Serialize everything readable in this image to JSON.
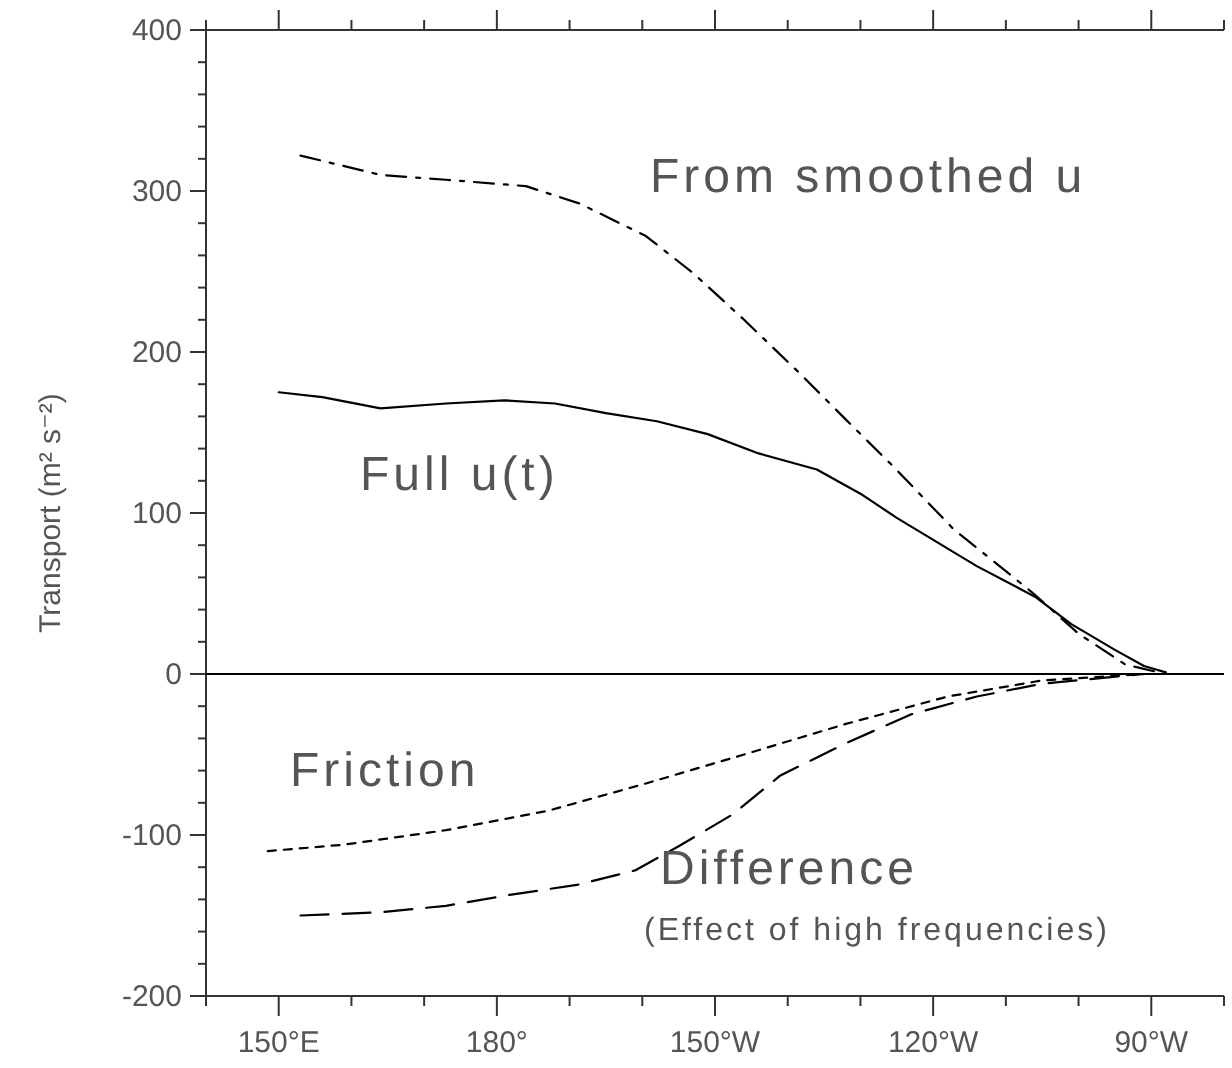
{
  "chart_data": {
    "type": "line",
    "ylabel": "Transport (m² s⁻²)",
    "xlim": [
      140,
      280
    ],
    "ylim": [
      -200,
      400
    ],
    "xticks": [
      {
        "value": 140,
        "label": null
      },
      {
        "value": 150,
        "label": "150°E"
      },
      {
        "value": 160,
        "label": null
      },
      {
        "value": 170,
        "label": null
      },
      {
        "value": 180,
        "label": "180°"
      },
      {
        "value": 190,
        "label": null
      },
      {
        "value": 200,
        "label": null
      },
      {
        "value": 210,
        "label": "150°W"
      },
      {
        "value": 220,
        "label": null
      },
      {
        "value": 230,
        "label": null
      },
      {
        "value": 240,
        "label": "120°W"
      },
      {
        "value": 250,
        "label": null
      },
      {
        "value": 260,
        "label": null
      },
      {
        "value": 270,
        "label": "90°W"
      },
      {
        "value": 280,
        "label": null
      }
    ],
    "yticks": [
      -200,
      {
        "value": -180,
        "label": null
      },
      {
        "value": -160,
        "label": null
      },
      {
        "value": -140,
        "label": null
      },
      {
        "value": -120,
        "label": null
      },
      -100,
      {
        "value": -80,
        "label": null
      },
      {
        "value": -60,
        "label": null
      },
      {
        "value": -40,
        "label": null
      },
      {
        "value": -20,
        "label": null
      },
      0,
      {
        "value": 20,
        "label": null
      },
      {
        "value": 40,
        "label": null
      },
      {
        "value": 60,
        "label": null
      },
      {
        "value": 80,
        "label": null
      },
      100,
      {
        "value": 120,
        "label": null
      },
      {
        "value": 140,
        "label": null
      },
      {
        "value": 160,
        "label": null
      },
      {
        "value": 180,
        "label": null
      },
      200,
      {
        "value": 220,
        "label": null
      },
      {
        "value": 240,
        "label": null
      },
      {
        "value": 260,
        "label": null
      },
      {
        "value": 280,
        "label": null
      },
      300,
      {
        "value": 320,
        "label": null
      },
      {
        "value": 340,
        "label": null
      },
      {
        "value": 360,
        "label": null
      },
      {
        "value": 380,
        "label": null
      },
      400
    ],
    "ref_lines": [
      {
        "axis": "y",
        "value": 0,
        "color": "#000000"
      }
    ],
    "annotations": [
      "(Effect of high frequencies)"
    ],
    "series": [
      {
        "name": "From smoothed u",
        "color": "#000000",
        "line_style": "dashdot",
        "x": [
          153,
          164,
          173,
          184,
          191.5,
          200.5,
          207,
          214,
          221.6,
          228,
          234.5,
          242.8,
          253.8,
          260,
          266.4,
          271
        ],
        "values": [
          322,
          310,
          307,
          303,
          292,
          272,
          249,
          220,
          187,
          158,
          129,
          90,
          50,
          25,
          6,
          1
        ]
      },
      {
        "name": "Full u(t)",
        "color": "#000000",
        "line_style": "solid",
        "x": [
          150,
          156,
          164,
          173,
          181,
          188,
          195,
          202,
          209,
          216,
          224,
          230,
          235,
          246,
          254,
          259,
          265,
          269,
          272
        ],
        "values": [
          175,
          172,
          165,
          168,
          170,
          168,
          162,
          157,
          149,
          137,
          127,
          112,
          97,
          67,
          48,
          31,
          15,
          5,
          1
        ]
      },
      {
        "name": "Friction",
        "color": "#000000",
        "line_style": "dotted",
        "x": [
          148.5,
          159,
          173,
          187,
          200.5,
          214,
          228,
          242,
          255,
          269
        ],
        "values": [
          -110,
          -106,
          -97,
          -85,
          -68,
          -50,
          -31,
          -14,
          -4,
          0
        ]
      },
      {
        "name": "Difference",
        "color": "#000000",
        "line_style": "dashed",
        "x": [
          153,
          164,
          173,
          182,
          191,
          199,
          205,
          212.5,
          219,
          228,
          237,
          246,
          255,
          269
        ],
        "values": [
          -150,
          -148,
          -144,
          -137,
          -131,
          -122,
          -107,
          -87,
          -63,
          -43,
          -25,
          -14,
          -6,
          0
        ]
      }
    ]
  }
}
